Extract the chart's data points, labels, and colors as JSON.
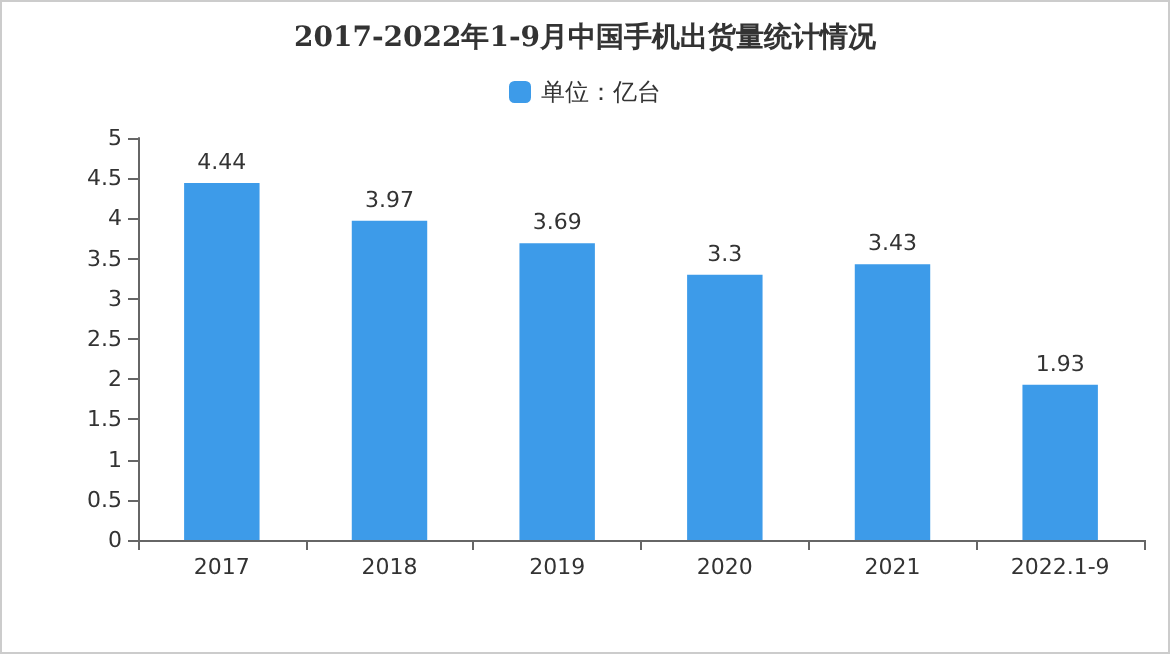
{
  "chart_data": {
    "type": "bar",
    "title": "2017-2022年1-9月中国手机出货量统计情况",
    "categories": [
      "2017",
      "2018",
      "2019",
      "2020",
      "2021",
      "2022.1-9"
    ],
    "series": [
      {
        "name": "单位：亿台",
        "color": "#3d9be9",
        "values": [
          4.44,
          3.97,
          3.69,
          3.3,
          3.43,
          1.93
        ]
      }
    ],
    "ylim": [
      0,
      5
    ],
    "yticks": [
      0,
      0.5,
      1,
      1.5,
      2,
      2.5,
      3,
      3.5,
      4,
      4.5,
      5
    ],
    "data_labels": true,
    "grid": false,
    "legend": "top"
  }
}
